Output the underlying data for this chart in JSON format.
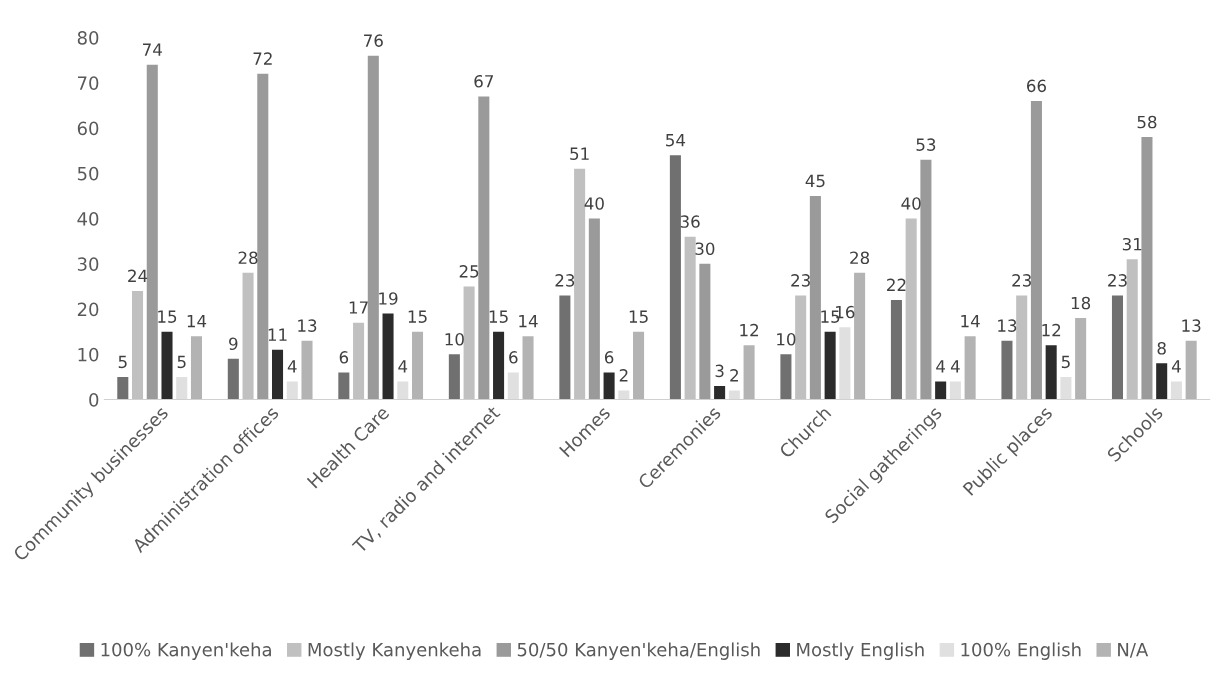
{
  "chart_data": {
    "type": "bar",
    "categories": [
      "Community businesses",
      "Administration offices",
      "Health Care",
      "TV, radio and internet",
      "Homes",
      "Ceremonies",
      "Church",
      "Social gatherings",
      "Public places",
      "Schools"
    ],
    "series": [
      {
        "name": "100% Kanyen'keha",
        "color": "#707070",
        "values": [
          5,
          9,
          6,
          10,
          23,
          54,
          10,
          22,
          13,
          23
        ]
      },
      {
        "name": "Mostly Kanyenkeha",
        "color": "#c0c0c0",
        "values": [
          24,
          28,
          17,
          25,
          51,
          36,
          23,
          40,
          23,
          31
        ]
      },
      {
        "name": "50/50 Kanyen'keha/English",
        "color": "#9a9a9a",
        "values": [
          74,
          72,
          76,
          67,
          40,
          30,
          45,
          53,
          66,
          58
        ]
      },
      {
        "name": "Mostly English",
        "color": "#2b2b2b",
        "values": [
          15,
          11,
          19,
          15,
          6,
          3,
          15,
          4,
          12,
          8
        ]
      },
      {
        "name": "100% English",
        "color": "#e0e0e0",
        "values": [
          5,
          4,
          4,
          6,
          2,
          2,
          16,
          4,
          5,
          4
        ]
      },
      {
        "name": "N/A",
        "color": "#b3b3b3",
        "values": [
          14,
          13,
          15,
          14,
          15,
          12,
          28,
          14,
          18,
          13
        ]
      }
    ],
    "ylim": [
      0,
      80
    ],
    "yticks": [
      0,
      10,
      20,
      30,
      40,
      50,
      60,
      70,
      80
    ],
    "grid": false,
    "data_labels": true,
    "legend": "bottom"
  }
}
